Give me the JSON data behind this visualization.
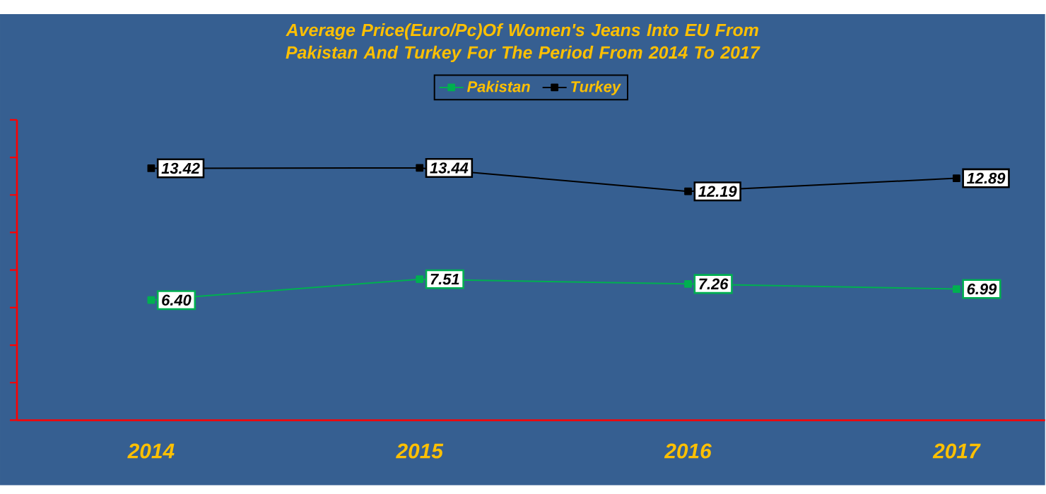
{
  "chart_data": {
    "type": "line",
    "title": "Average Price(Euro/Pc)Of Women's Jeans Into EU From Pakistan And Turkey For The Period From 2014 To 2017",
    "categories": [
      "2014",
      "2015",
      "2016",
      "2017"
    ],
    "series": [
      {
        "name": "Pakistan",
        "color": "#00b050",
        "values": [
          6.4,
          7.51,
          7.26,
          6.99
        ],
        "value_labels": [
          "6.40",
          "7.51",
          "7.26",
          "6.99"
        ]
      },
      {
        "name": "Turkey",
        "color": "#000000",
        "values": [
          13.42,
          13.44,
          12.19,
          12.89
        ],
        "value_labels": [
          "13.42",
          "13.44",
          "12.19",
          "12.89"
        ]
      }
    ],
    "ylim": [
      0,
      16
    ],
    "yticks": [
      {
        "value": 0,
        "label": null
      },
      {
        "value": 2,
        "label": null
      },
      {
        "value": 4,
        "label": null
      },
      {
        "value": 6,
        "label": null
      },
      {
        "value": 8,
        "label": null
      },
      {
        "value": 10,
        "label": null
      },
      {
        "value": 12,
        "label": null
      },
      {
        "value": 14,
        "label": null
      },
      {
        "value": 16,
        "label": null
      }
    ],
    "tick_labels": "x",
    "grid": false,
    "legend": "top",
    "marker": "square",
    "line_style": "solid"
  }
}
